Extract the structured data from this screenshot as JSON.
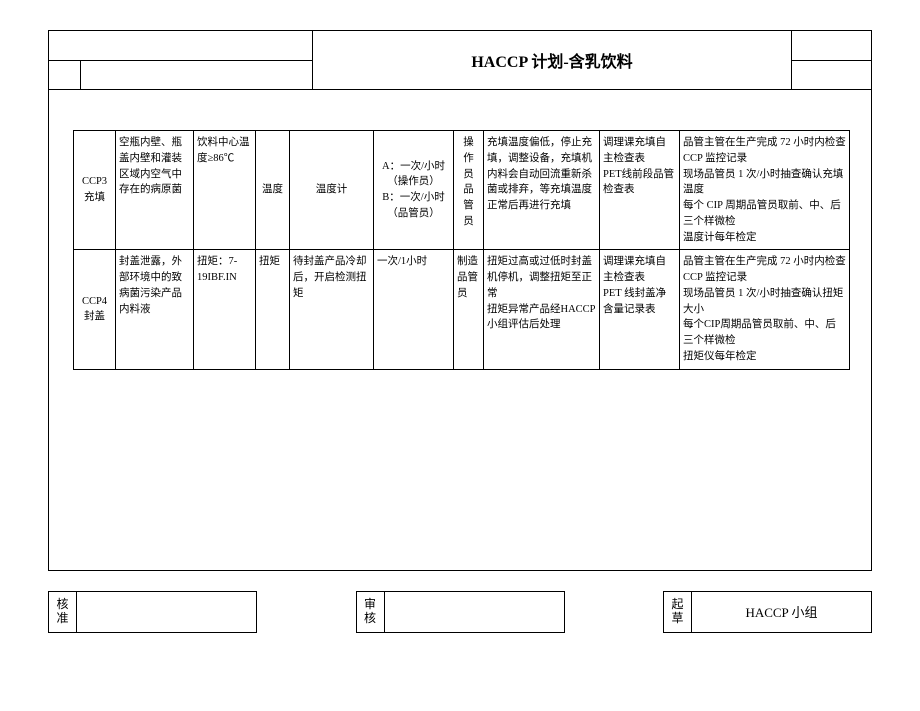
{
  "header": {
    "title": "HACCP 计划-含乳饮料"
  },
  "table": {
    "rows": [
      {
        "ccp": "CCP3\n充填",
        "hazard": "空瓶内壁、瓶盖内壁和灌装区域内空气中存在的病原菌",
        "limit": "饮料中心温度≥86℃",
        "what": "温度",
        "how": "温度计",
        "freq": "A：一次/小时（操作员）\nB：一次/小时（品管员）",
        "who": "操作员\n品管员",
        "corrective": "充填温度偏低，停止充填，调整设备，充填机内料会自动回流重新杀菌或排弃，等充填温度正常后再进行充填",
        "record": "调理课充填自主检查表\nPET线前段品管检查表",
        "verify": "品管主管在生产完成 72 小时内检查 CCP 监控记录\n现场品管员 1 次/小时抽查确认充填温度\n每个 CIP 周期品管员取前、中、后三个样微检\n温度计每年检定"
      },
      {
        "ccp": "CCP4\n封盖",
        "hazard": "封盖泄露，外部环境中的致病菌污染产品内料液",
        "limit": "扭矩：7-19IBF.IN",
        "what": "扭矩",
        "how": "待封盖产品冷却后，开启检测扭矩",
        "freq": "一次/1小时",
        "who": "制造品管员",
        "corrective": "扭矩过高或过低时封盖机停机，调整扭矩至正常\n扭矩异常产品经HACCP小组评估后处理",
        "record": "调理课充填自主检查表\nPET 线封盖净含量记录表",
        "verify": "品管主管在生产完成 72 小时内检查 CCP 监控记录\n现场品管员 1 次/小时抽查确认扭矩大小\n每个CIP周期品管员取前、中、后三个样微检\n扭矩仪每年检定"
      }
    ]
  },
  "footer": {
    "approve_label": "核准",
    "review_label": "审核",
    "draft_label": "起草",
    "draft_value": "HACCP 小组"
  },
  "colwidths": [
    "42",
    "78",
    "62",
    "34",
    "84",
    "80",
    "30",
    "116",
    "80",
    "170"
  ]
}
